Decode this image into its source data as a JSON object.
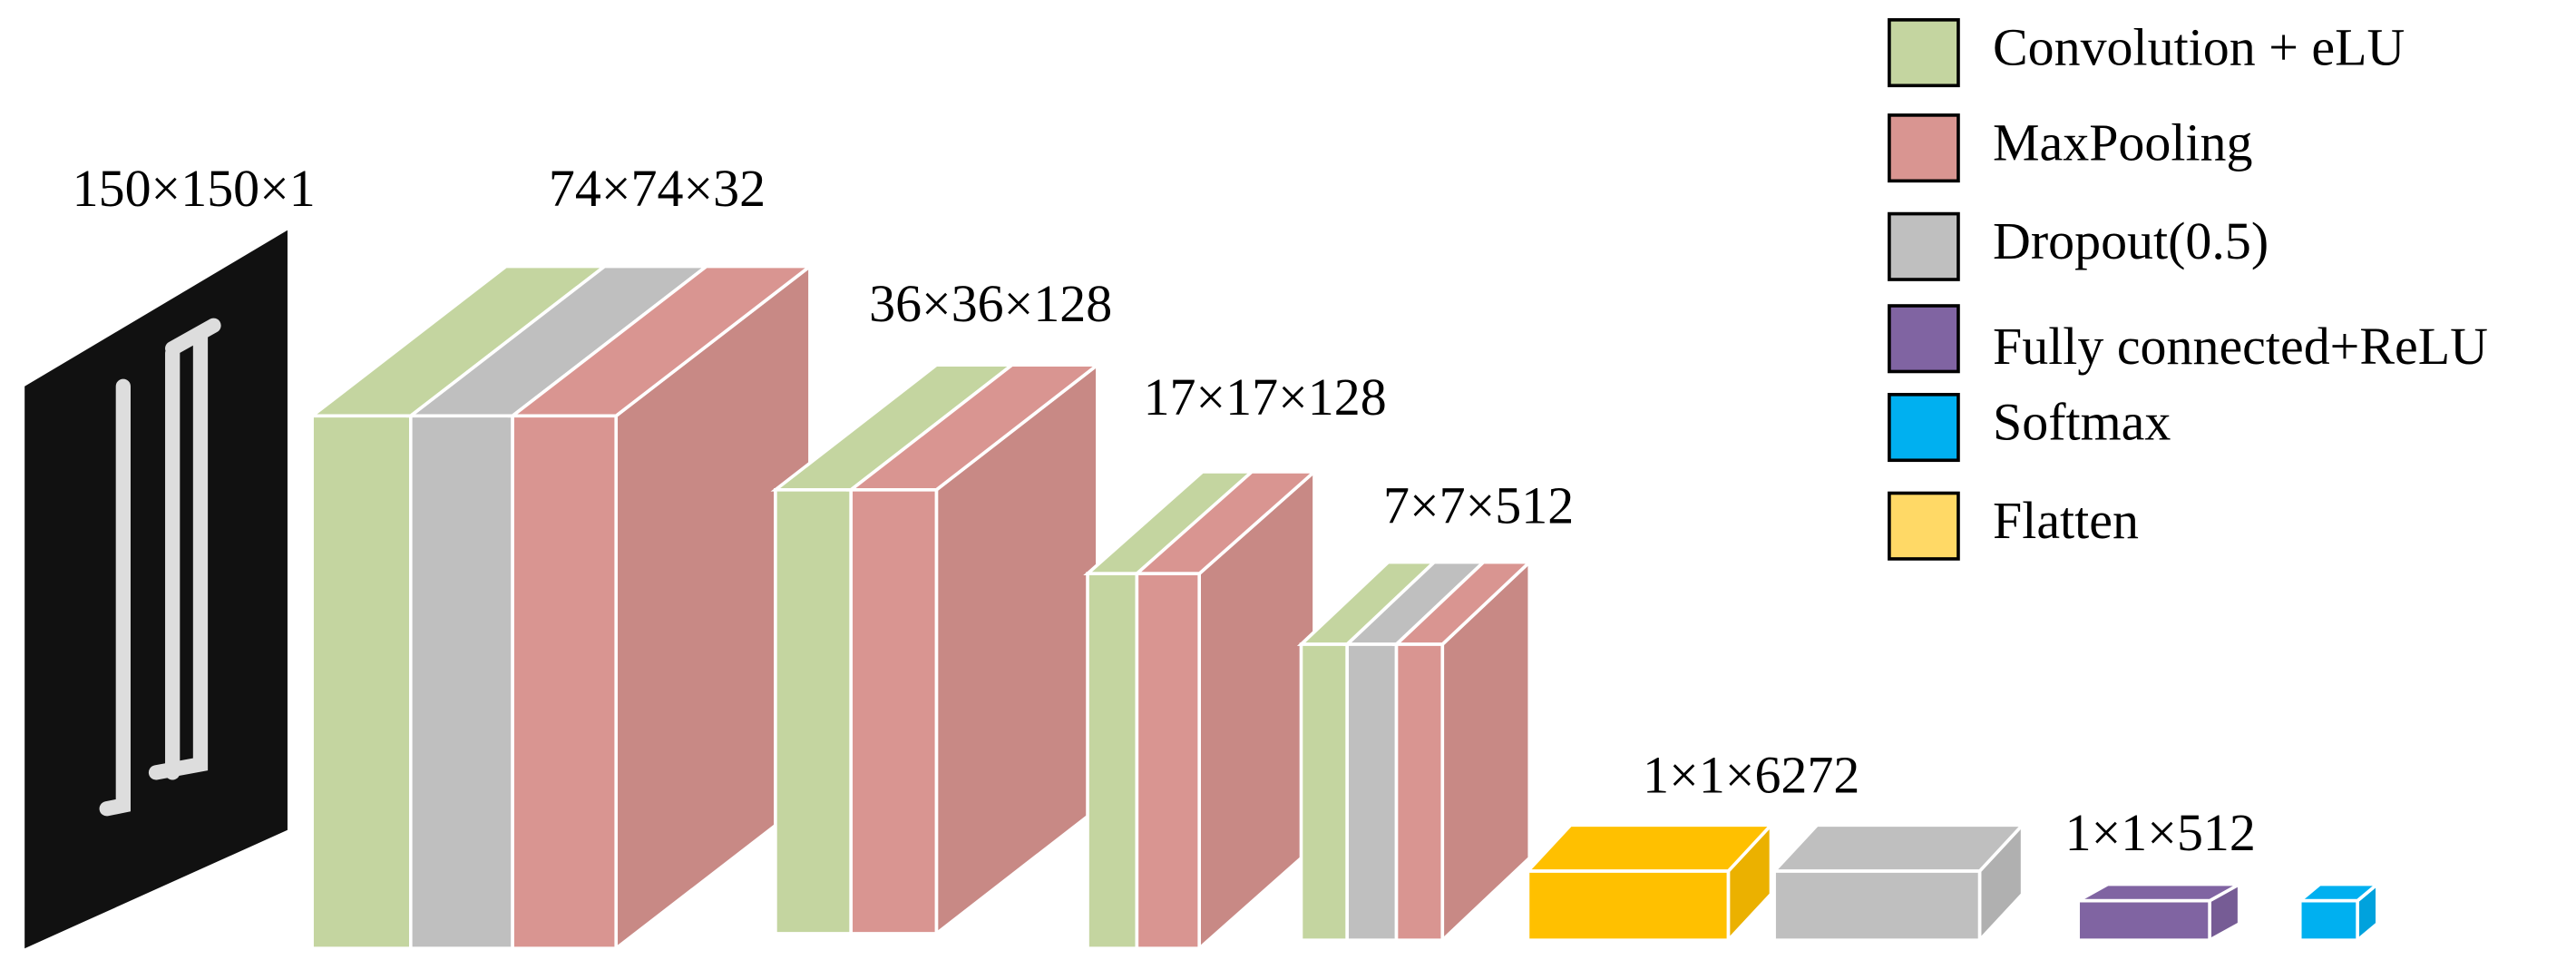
{
  "layers": [
    {
      "label": "150×150×1"
    },
    {
      "label": "74×74×32"
    },
    {
      "label": "36×36×128"
    },
    {
      "label": "17×17×128"
    },
    {
      "label": "7×7×512"
    },
    {
      "label": "1×1×6272"
    },
    {
      "label": "1×1×512"
    }
  ],
  "legend": [
    {
      "label": "Convolution + eLU"
    },
    {
      "label": "MaxPooling"
    },
    {
      "label": "Dropout(0.5)"
    },
    {
      "label": "Fully connected+ReLU"
    },
    {
      "label": "Softmax"
    },
    {
      "label": "Flatten"
    }
  ]
}
